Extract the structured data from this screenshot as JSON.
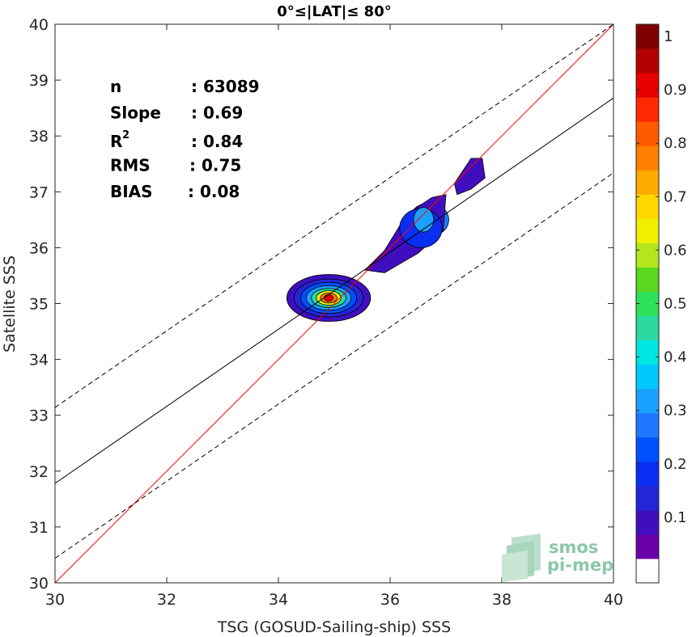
{
  "chart_data": {
    "type": "scatter",
    "subtype": "density-contour",
    "title": "0°≤|LAT|≤ 80°",
    "xlabel": "TSG (GOSUD-Sailing-ship) SSS",
    "ylabel": "Satellite SSS",
    "xlim": [
      30,
      40
    ],
    "ylim": [
      30,
      40
    ],
    "xticks": [
      30,
      32,
      34,
      36,
      38,
      40
    ],
    "yticks": [
      30,
      31,
      32,
      33,
      34,
      35,
      36,
      37,
      38,
      39,
      40
    ],
    "grid": false,
    "stats": [
      {
        "label": "n",
        "value": ": 63089"
      },
      {
        "label": "Slope",
        "value": ": 0.69"
      },
      {
        "label": "R",
        "sup": "2",
        "value": ": 0.84"
      },
      {
        "label": "RMS",
        "value": ": 0.75"
      },
      {
        "label": "BIAS",
        "value": ": 0.08"
      }
    ],
    "lines": [
      {
        "name": "1:1",
        "color": "#ff0000",
        "style": "solid",
        "points": [
          [
            30,
            30
          ],
          [
            40,
            40
          ]
        ]
      },
      {
        "name": "regression",
        "color": "#000000",
        "style": "solid",
        "points": [
          [
            30,
            31.78
          ],
          [
            40,
            38.68
          ]
        ]
      },
      {
        "name": "upper-bound",
        "color": "#000000",
        "style": "dashed",
        "points": [
          [
            30,
            33.14
          ],
          [
            40,
            40
          ]
        ]
      },
      {
        "name": "lower-bound",
        "color": "#000000",
        "style": "dashed",
        "points": [
          [
            30,
            30.44
          ],
          [
            40,
            37.34
          ]
        ]
      }
    ],
    "density_clusters": [
      {
        "center": [
          34.9,
          35.1
        ],
        "levels": [
          {
            "rx": 0.75,
            "ry": 0.42,
            "level": 0.05
          },
          {
            "rx": 0.62,
            "ry": 0.34,
            "level": 0.1
          },
          {
            "rx": 0.5,
            "ry": 0.28,
            "level": 0.2
          },
          {
            "rx": 0.4,
            "ry": 0.22,
            "level": 0.3
          },
          {
            "rx": 0.31,
            "ry": 0.17,
            "level": 0.45
          },
          {
            "rx": 0.22,
            "ry": 0.13,
            "level": 0.6
          },
          {
            "rx": 0.15,
            "ry": 0.09,
            "level": 0.75
          },
          {
            "rx": 0.08,
            "ry": 0.06,
            "level": 0.9
          }
        ]
      },
      {
        "center": [
          36.7,
          36.5
        ],
        "levels": [
          {
            "rx": 0.35,
            "ry": 0.3,
            "level": 0.25
          },
          {
            "rx": 0.18,
            "ry": 0.14,
            "level": 0.4
          }
        ]
      },
      {
        "center": [
          37.5,
          37.3
        ],
        "levels": [
          {
            "rx": 0.07,
            "ry": 0.05,
            "level": 0.2
          }
        ]
      }
    ],
    "colorbar": {
      "colors": [
        "#ffffff",
        "#6a00a8",
        "#3f0fbf",
        "#2424d9",
        "#0a2ef2",
        "#0050ff",
        "#1e78ff",
        "#1aa0ff",
        "#00c8ff",
        "#00e6e0",
        "#2ad8a0",
        "#2ee05a",
        "#5ad820",
        "#b4e61e",
        "#f0f000",
        "#ffd800",
        "#ffaa00",
        "#ff8000",
        "#ff5a00",
        "#ff2800",
        "#e60000",
        "#b40000",
        "#800000"
      ],
      "tick_values": [
        0.1,
        0.2,
        0.3,
        0.4,
        0.5,
        0.6,
        0.7,
        0.8,
        0.9,
        1
      ],
      "tick_labels": [
        "0.1",
        "0.2",
        "0.3",
        "0.4",
        "0.5",
        "0.6",
        "0.7",
        "0.8",
        "0.9",
        "1"
      ]
    }
  },
  "logo": {
    "line1": "smos",
    "line2": "pi-mep"
  }
}
